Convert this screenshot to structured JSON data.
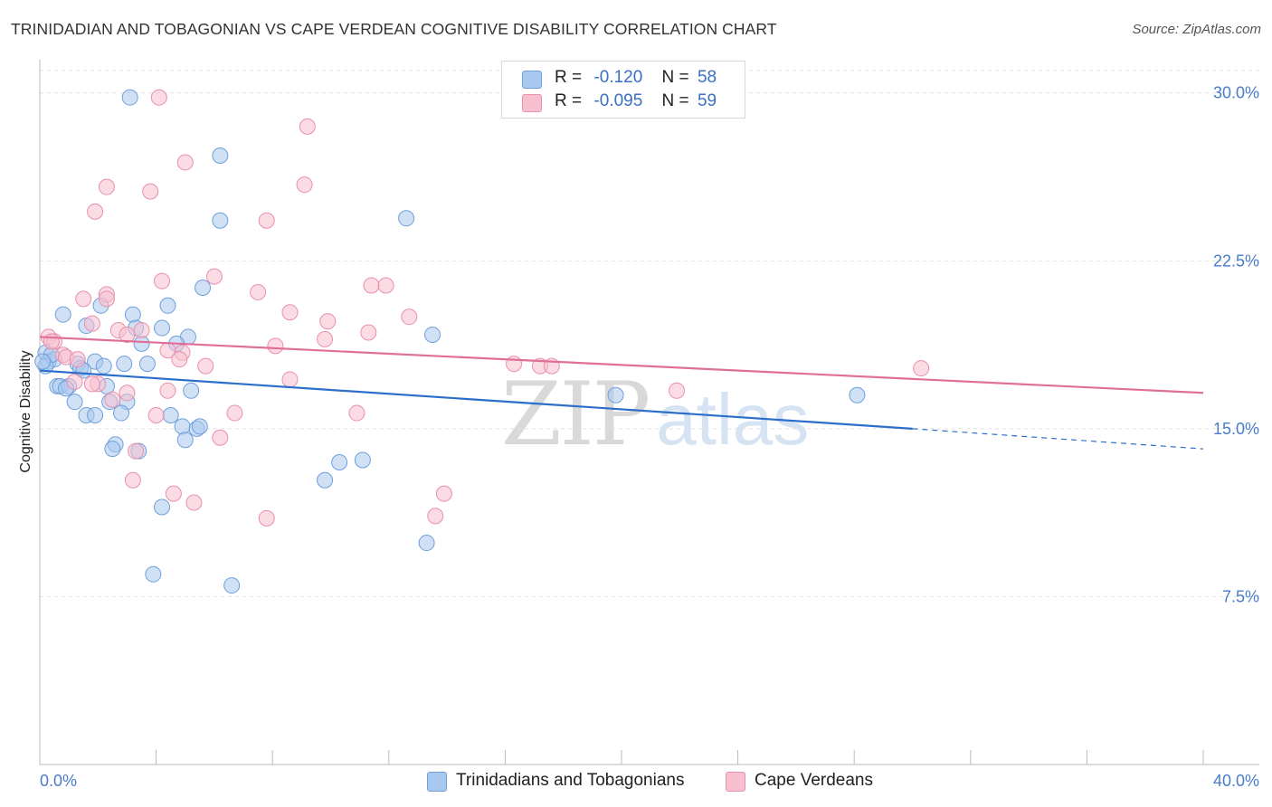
{
  "title": "TRINIDADIAN AND TOBAGONIAN VS CAPE VERDEAN COGNITIVE DISABILITY CORRELATION CHART",
  "source": "Source: ZipAtlas.com",
  "watermark": {
    "zip": "ZIP",
    "atlas": "atlas"
  },
  "legend": {
    "r_label": "R =",
    "n_label": "N =",
    "rows": [
      {
        "r": "-0.120",
        "n": "58",
        "color": "#a9c8ef",
        "border": "#6f9fdc"
      },
      {
        "r": "-0.095",
        "n": "59",
        "color": "#f7bfd0",
        "border": "#e990ac"
      }
    ]
  },
  "chart_data": {
    "type": "scatter",
    "title": "TRINIDADIAN AND TOBAGONIAN VS CAPE VERDEAN COGNITIVE DISABILITY CORRELATION CHART",
    "xlabel": "",
    "ylabel": "Cognitive Disability",
    "xlim": [
      0,
      40
    ],
    "ylim": [
      0,
      31
    ],
    "x_tick_labels": [
      "0.0%",
      "40.0%"
    ],
    "y_ticks": [
      7.5,
      15.0,
      22.5,
      30.0
    ],
    "y_tick_labels": [
      "7.5%",
      "15.0%",
      "22.5%",
      "30.0%"
    ],
    "grid": true,
    "series": [
      {
        "name": "Trinidadians and Tobagonians",
        "color": "#a9c8ef",
        "stroke": "#6f9fdc",
        "line_color": "#2b6fcb",
        "trend": {
          "x0": 0,
          "y0": 17.6,
          "x1": 30.0,
          "y1": 15.0,
          "dash_to_x": 40,
          "dash_to_y": 14.1
        },
        "points": [
          [
            3.1,
            29.8
          ],
          [
            6.2,
            27.2
          ],
          [
            6.2,
            24.3
          ],
          [
            12.6,
            24.4
          ],
          [
            5.6,
            21.3
          ],
          [
            0.8,
            20.1
          ],
          [
            2.1,
            20.5
          ],
          [
            3.2,
            20.1
          ],
          [
            4.4,
            20.5
          ],
          [
            1.6,
            19.6
          ],
          [
            3.3,
            19.5
          ],
          [
            4.2,
            19.5
          ],
          [
            5.1,
            19.1
          ],
          [
            13.5,
            19.2
          ],
          [
            4.7,
            18.8
          ],
          [
            0.2,
            18.4
          ],
          [
            0.3,
            18.0
          ],
          [
            0.5,
            18.1
          ],
          [
            0.4,
            18.3
          ],
          [
            0.2,
            17.8
          ],
          [
            1.3,
            17.9
          ],
          [
            1.4,
            17.7
          ],
          [
            1.9,
            18.0
          ],
          [
            2.2,
            17.8
          ],
          [
            2.9,
            17.9
          ],
          [
            3.7,
            17.9
          ],
          [
            0.6,
            16.9
          ],
          [
            0.7,
            16.9
          ],
          [
            1.0,
            16.9
          ],
          [
            1.2,
            16.2
          ],
          [
            2.4,
            16.2
          ],
          [
            5.2,
            16.7
          ],
          [
            3.0,
            16.2
          ],
          [
            1.6,
            15.6
          ],
          [
            1.9,
            15.6
          ],
          [
            2.8,
            15.7
          ],
          [
            4.5,
            15.6
          ],
          [
            4.9,
            15.1
          ],
          [
            5.4,
            15.0
          ],
          [
            2.6,
            14.3
          ],
          [
            2.5,
            14.1
          ],
          [
            3.4,
            14.0
          ],
          [
            5.0,
            14.5
          ],
          [
            11.1,
            13.6
          ],
          [
            10.3,
            13.5
          ],
          [
            9.8,
            12.7
          ],
          [
            4.2,
            11.5
          ],
          [
            13.3,
            9.9
          ],
          [
            3.9,
            8.5
          ],
          [
            6.6,
            8.0
          ],
          [
            19.8,
            16.5
          ],
          [
            28.1,
            16.5
          ],
          [
            0.9,
            16.8
          ],
          [
            2.3,
            16.9
          ],
          [
            1.5,
            17.6
          ],
          [
            0.1,
            18.0
          ],
          [
            3.5,
            18.8
          ],
          [
            5.5,
            15.1
          ]
        ]
      },
      {
        "name": "Cape Verdeans",
        "color": "#f7bfd0",
        "stroke": "#e990ac",
        "line_color": "#e06f97",
        "trend": {
          "x0": 0,
          "y0": 19.1,
          "x1": 40,
          "y1": 16.6
        },
        "points": [
          [
            4.1,
            29.8
          ],
          [
            9.2,
            28.5
          ],
          [
            5.0,
            26.9
          ],
          [
            9.1,
            25.9
          ],
          [
            2.3,
            25.8
          ],
          [
            3.8,
            25.6
          ],
          [
            1.9,
            24.7
          ],
          [
            7.8,
            24.3
          ],
          [
            6.0,
            21.8
          ],
          [
            4.2,
            21.6
          ],
          [
            11.4,
            21.4
          ],
          [
            11.9,
            21.4
          ],
          [
            7.5,
            21.1
          ],
          [
            2.3,
            21.0
          ],
          [
            2.3,
            20.8
          ],
          [
            1.5,
            20.8
          ],
          [
            8.6,
            20.2
          ],
          [
            12.7,
            20.0
          ],
          [
            9.9,
            19.8
          ],
          [
            1.8,
            19.7
          ],
          [
            3.5,
            19.4
          ],
          [
            11.3,
            19.3
          ],
          [
            2.7,
            19.4
          ],
          [
            3.0,
            19.2
          ],
          [
            0.3,
            19.1
          ],
          [
            0.5,
            18.9
          ],
          [
            9.8,
            19.0
          ],
          [
            8.1,
            18.7
          ],
          [
            4.4,
            18.5
          ],
          [
            4.9,
            18.4
          ],
          [
            0.8,
            18.3
          ],
          [
            0.9,
            18.2
          ],
          [
            4.8,
            18.1
          ],
          [
            1.3,
            18.1
          ],
          [
            5.7,
            17.8
          ],
          [
            16.3,
            17.9
          ],
          [
            17.2,
            17.8
          ],
          [
            17.6,
            17.8
          ],
          [
            30.3,
            17.7
          ],
          [
            1.2,
            17.1
          ],
          [
            2.0,
            17.0
          ],
          [
            8.6,
            17.2
          ],
          [
            1.8,
            17.0
          ],
          [
            3.0,
            16.6
          ],
          [
            4.4,
            16.7
          ],
          [
            21.9,
            16.7
          ],
          [
            2.5,
            16.3
          ],
          [
            4.0,
            15.6
          ],
          [
            6.7,
            15.7
          ],
          [
            10.9,
            15.7
          ],
          [
            6.2,
            14.6
          ],
          [
            3.3,
            14.0
          ],
          [
            3.2,
            12.7
          ],
          [
            4.6,
            12.1
          ],
          [
            5.3,
            11.7
          ],
          [
            13.9,
            12.1
          ],
          [
            7.8,
            11.0
          ],
          [
            13.6,
            11.1
          ],
          [
            0.4,
            18.9
          ]
        ]
      }
    ]
  },
  "bottom_legend": [
    {
      "label": "Trinidadians and Tobagonians",
      "color": "#a9c8ef",
      "border": "#6f9fdc"
    },
    {
      "label": "Cape Verdeans",
      "color": "#f7bfd0",
      "border": "#e990ac"
    }
  ]
}
